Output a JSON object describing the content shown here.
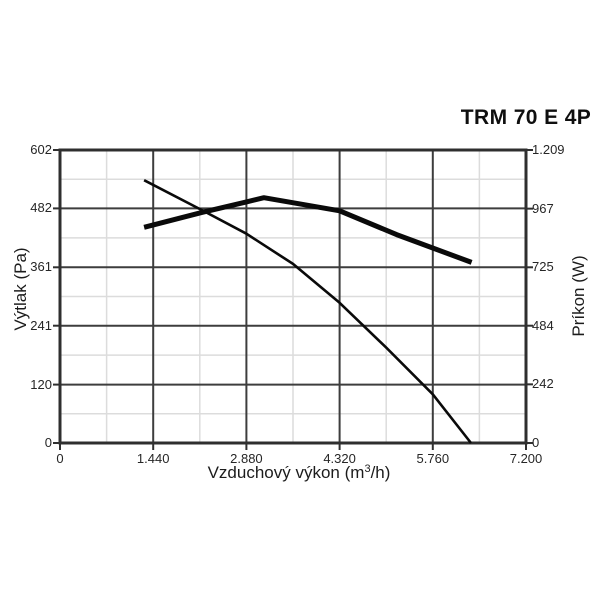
{
  "page": {
    "title": "TRM 70 E 4P"
  },
  "chart_data": {
    "type": "line",
    "title": "TRM 70 E 4P",
    "xlabel": {
      "prefix": "Vzduchový výkon (m",
      "sup": "3",
      "suffix": "/h)"
    },
    "ylabel_left": "Výtlak (Pa)",
    "ylabel_right": "Príkon (W)",
    "x_axis": {
      "min": 0,
      "max": 7200,
      "ticks": [
        0,
        1440,
        2880,
        4320,
        5760,
        7200
      ],
      "tick_labels": [
        "0",
        "1.440",
        "2.880",
        "4.320",
        "5.760",
        "7.200"
      ]
    },
    "y_axis_left": {
      "min": 0,
      "max": 602,
      "ticks": [
        0,
        120,
        241,
        361,
        482,
        602
      ],
      "tick_labels": [
        "0",
        "120",
        "241",
        "361",
        "482",
        "602"
      ]
    },
    "y_axis_right": {
      "min": 0,
      "max": 1209,
      "ticks": [
        0,
        242,
        484,
        725,
        967,
        1209
      ],
      "tick_labels": [
        "0",
        "242",
        "484",
        "725",
        "967",
        "1.209"
      ]
    },
    "grid": {
      "major": true,
      "minor_at_midpoints": true
    },
    "legend": "none",
    "series": [
      {
        "name": "vytlak-pressure-curve",
        "axis": "left",
        "unit": "Pa",
        "line_weight": "thin",
        "points": [
          [
            1300,
            540
          ],
          [
            2200,
            478
          ],
          [
            2880,
            430
          ],
          [
            3600,
            368
          ],
          [
            4320,
            288
          ],
          [
            5040,
            196
          ],
          [
            5760,
            100
          ],
          [
            6350,
            0
          ]
        ]
      },
      {
        "name": "prikon-power-curve",
        "axis": "right",
        "unit": "W",
        "line_weight": "thick",
        "points": [
          [
            1300,
            890
          ],
          [
            2200,
            952
          ],
          [
            2880,
            995
          ],
          [
            3150,
            1012
          ],
          [
            4320,
            958
          ],
          [
            5200,
            860
          ],
          [
            6360,
            745
          ]
        ]
      }
    ],
    "colors": {
      "curve": "#0a0a0a",
      "frame": "#2f2f2f",
      "major_grid": "#3d3d3d",
      "minor_grid": "#dcdcdc",
      "text": "#262626",
      "background": "#ffffff"
    }
  }
}
